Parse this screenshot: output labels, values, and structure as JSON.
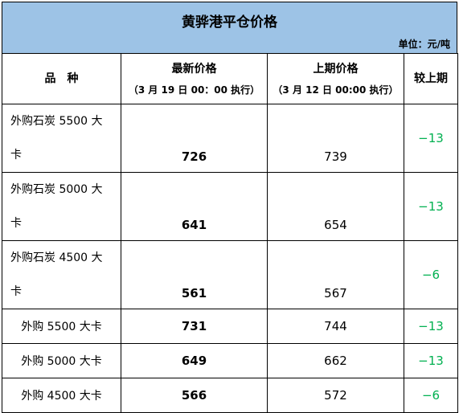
{
  "title": "黄骅港平仓价格",
  "unit": "单位：元/吨",
  "header": {
    "col1": "品　种",
    "col2": "最新价格",
    "col2_sub": "（3 月 19 日 00：00 执行）",
    "col3": "上期价格",
    "col3_sub": "（3 月 12 日 00:00 执行）",
    "col4": "较上期"
  },
  "rows": [
    {
      "name_line1": "外购石炭 5500 大",
      "name_line2": "卡",
      "latest": "726",
      "previous": "739",
      "change": "−13"
    },
    {
      "name_line1": "外购石炭 5000 大",
      "name_line2": "卡",
      "latest": "641",
      "previous": "654",
      "change": "−13"
    },
    {
      "name_line1": "外购石炭 4500 大",
      "name_line2": "卡",
      "latest": "561",
      "previous": "567",
      "change": "−6"
    },
    {
      "name": "外购 5500 大卡",
      "latest": "731",
      "previous": "744",
      "change": "−13"
    },
    {
      "name": "外购 5000 大卡",
      "latest": "649",
      "previous": "662",
      "change": "−13"
    },
    {
      "name": "外购 4500 大卡",
      "latest": "566",
      "previous": "572",
      "change": "−6"
    }
  ],
  "colors": {
    "title_band": "#9dc3e6",
    "change_text": "#00b050"
  }
}
